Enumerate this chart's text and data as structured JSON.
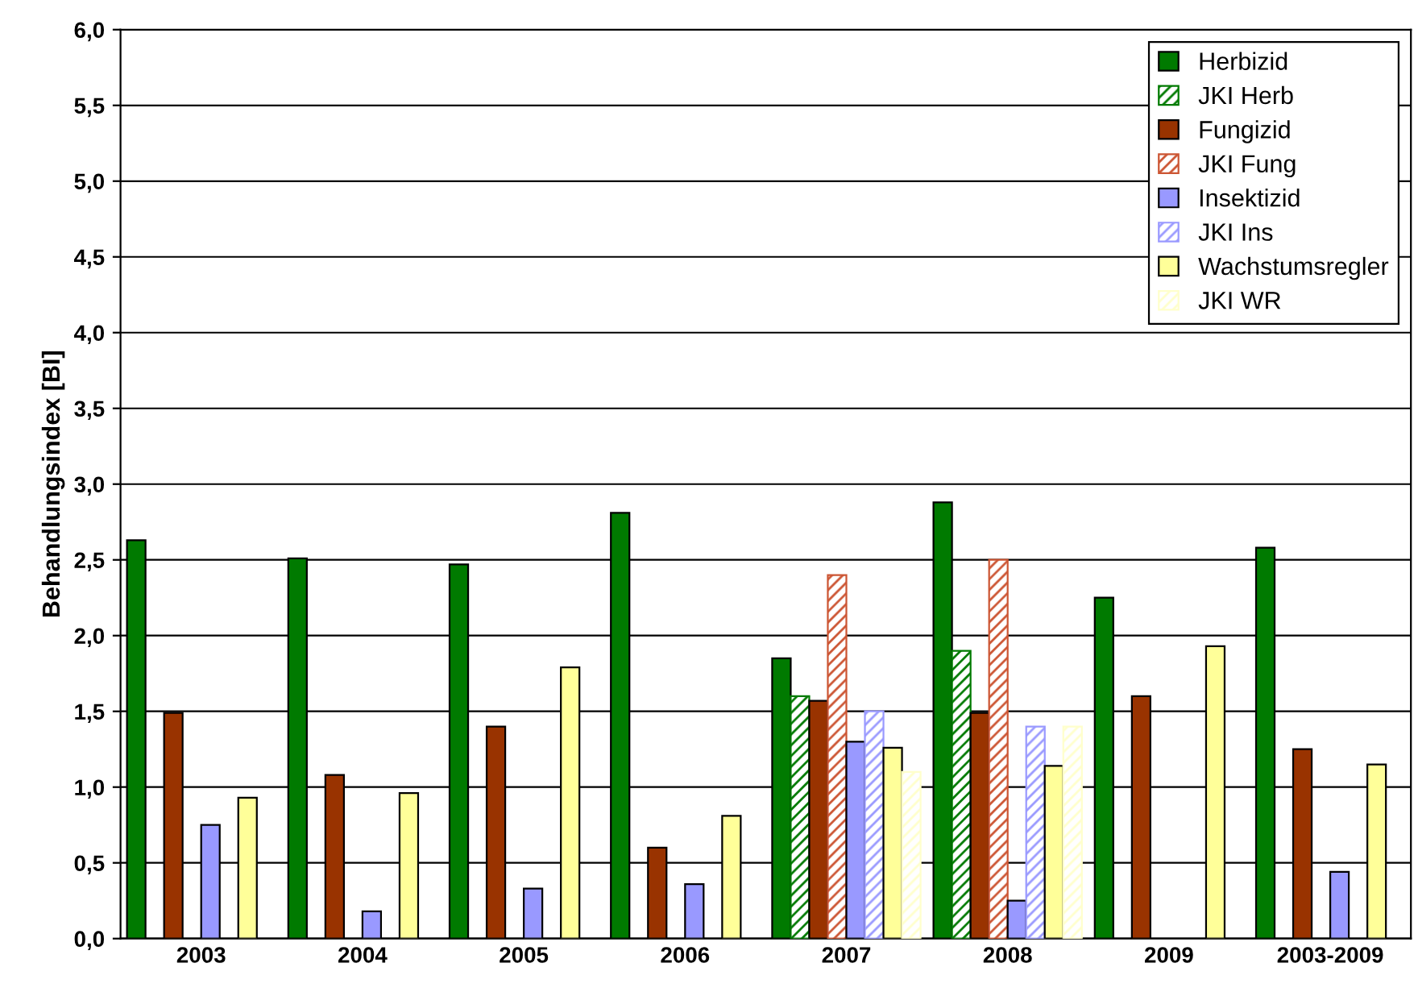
{
  "chart_data": {
    "type": "bar",
    "ylabel": "Behandlungsindex [BI]",
    "categories": [
      "2003",
      "2004",
      "2005",
      "2006",
      "2007",
      "2008",
      "2009",
      "2003-2009"
    ],
    "series": [
      {
        "name": "Herbizid",
        "color": "#007a00",
        "values": [
          2.63,
          2.51,
          2.47,
          2.81,
          1.85,
          2.88,
          2.25,
          2.58
        ]
      },
      {
        "name": "JKI Herb",
        "color": "#007a00",
        "values": [
          null,
          null,
          null,
          null,
          1.6,
          1.9,
          null,
          null
        ]
      },
      {
        "name": "Fungizid",
        "color": "#993300",
        "values": [
          1.49,
          1.08,
          1.4,
          0.6,
          1.57,
          1.49,
          1.6,
          1.25
        ]
      },
      {
        "name": "JKI Fung",
        "color": "#cc5533",
        "values": [
          null,
          null,
          null,
          null,
          2.4,
          2.5,
          null,
          null
        ]
      },
      {
        "name": "Insektizid",
        "color": "#9999ff",
        "values": [
          0.75,
          0.18,
          0.33,
          0.36,
          1.3,
          0.25,
          null,
          0.44
        ]
      },
      {
        "name": "JKI Ins",
        "color": "#9999ff",
        "values": [
          null,
          null,
          null,
          null,
          1.5,
          1.4,
          null,
          null
        ]
      },
      {
        "name": "Wachstumsregler",
        "color": "#ffff99",
        "values": [
          0.93,
          0.96,
          1.79,
          0.81,
          1.26,
          1.14,
          1.93,
          1.15
        ]
      },
      {
        "name": "JKI WR",
        "color": "#ffffcc",
        "values": [
          null,
          null,
          null,
          null,
          1.1,
          1.4,
          null,
          null
        ]
      }
    ],
    "ylim": [
      0,
      6
    ],
    "yticks": [
      {
        "value": 0,
        "label": "0,0"
      },
      {
        "value": 0.5,
        "label": "0,5"
      },
      {
        "value": 1,
        "label": "1,0"
      },
      {
        "value": 1.5,
        "label": "1,5"
      },
      {
        "value": 2,
        "label": "2,0"
      },
      {
        "value": 2.5,
        "label": "2,5"
      },
      {
        "value": 3,
        "label": "3,0"
      },
      {
        "value": 3.5,
        "label": "3,5"
      },
      {
        "value": 4,
        "label": "4,0"
      },
      {
        "value": 4.5,
        "label": "4,5"
      },
      {
        "value": 5,
        "label": "5,0"
      },
      {
        "value": 5.5,
        "label": "5,5"
      },
      {
        "value": 6,
        "label": "6,0"
      }
    ],
    "grid": "y",
    "legend": "top right"
  }
}
